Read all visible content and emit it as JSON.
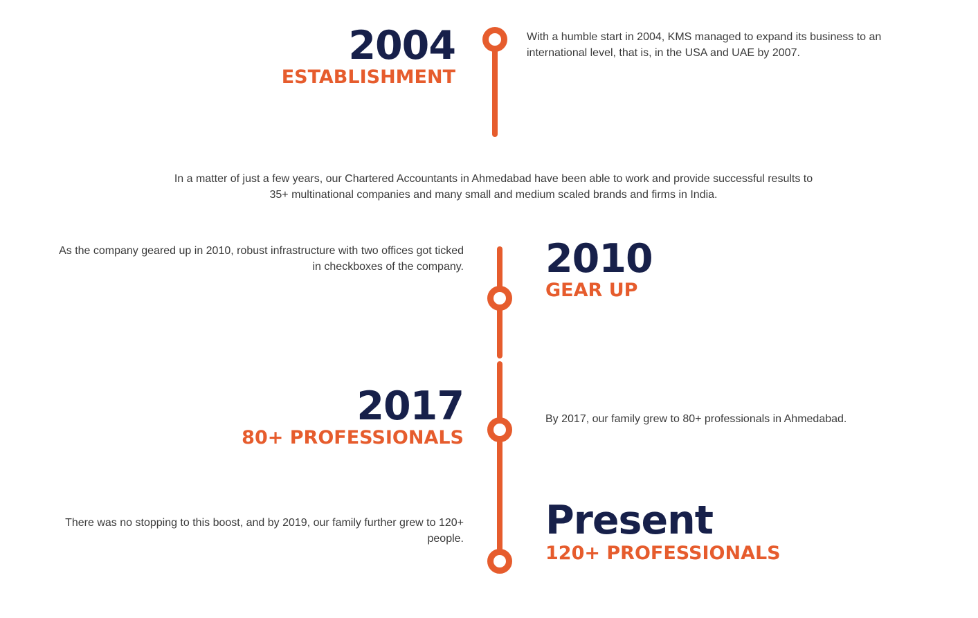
{
  "colors": {
    "accent": "#e65c2d",
    "heading": "#17204a",
    "text": "#3a3a3a"
  },
  "timeline": [
    {
      "year": "2004",
      "label": "ESTABLISHMENT",
      "description": "With a humble start in 2004, KMS managed to expand its business to an international level, that is, in the USA and UAE by 2007."
    },
    {
      "year": "2010",
      "label": "GEAR UP",
      "description": "As the company geared up in 2010, robust infrastructure with two offices got ticked in checkboxes of the company."
    },
    {
      "year": "2017",
      "label": "80+ PROFESSIONALS",
      "description": "By 2017, our family grew to 80+ professionals in Ahmedabad."
    },
    {
      "year": "Present",
      "label": "120+ PROFESSIONALS",
      "description": "There was no stopping to this boost, and by 2019, our family further grew to 120+ people."
    }
  ],
  "intro": {
    "text": "In a matter of just a few years, our Chartered Accountants in Ahmedabad have been able to work and provide successful results to 35+ multinational companies and many small and medium scaled brands and firms in India."
  }
}
